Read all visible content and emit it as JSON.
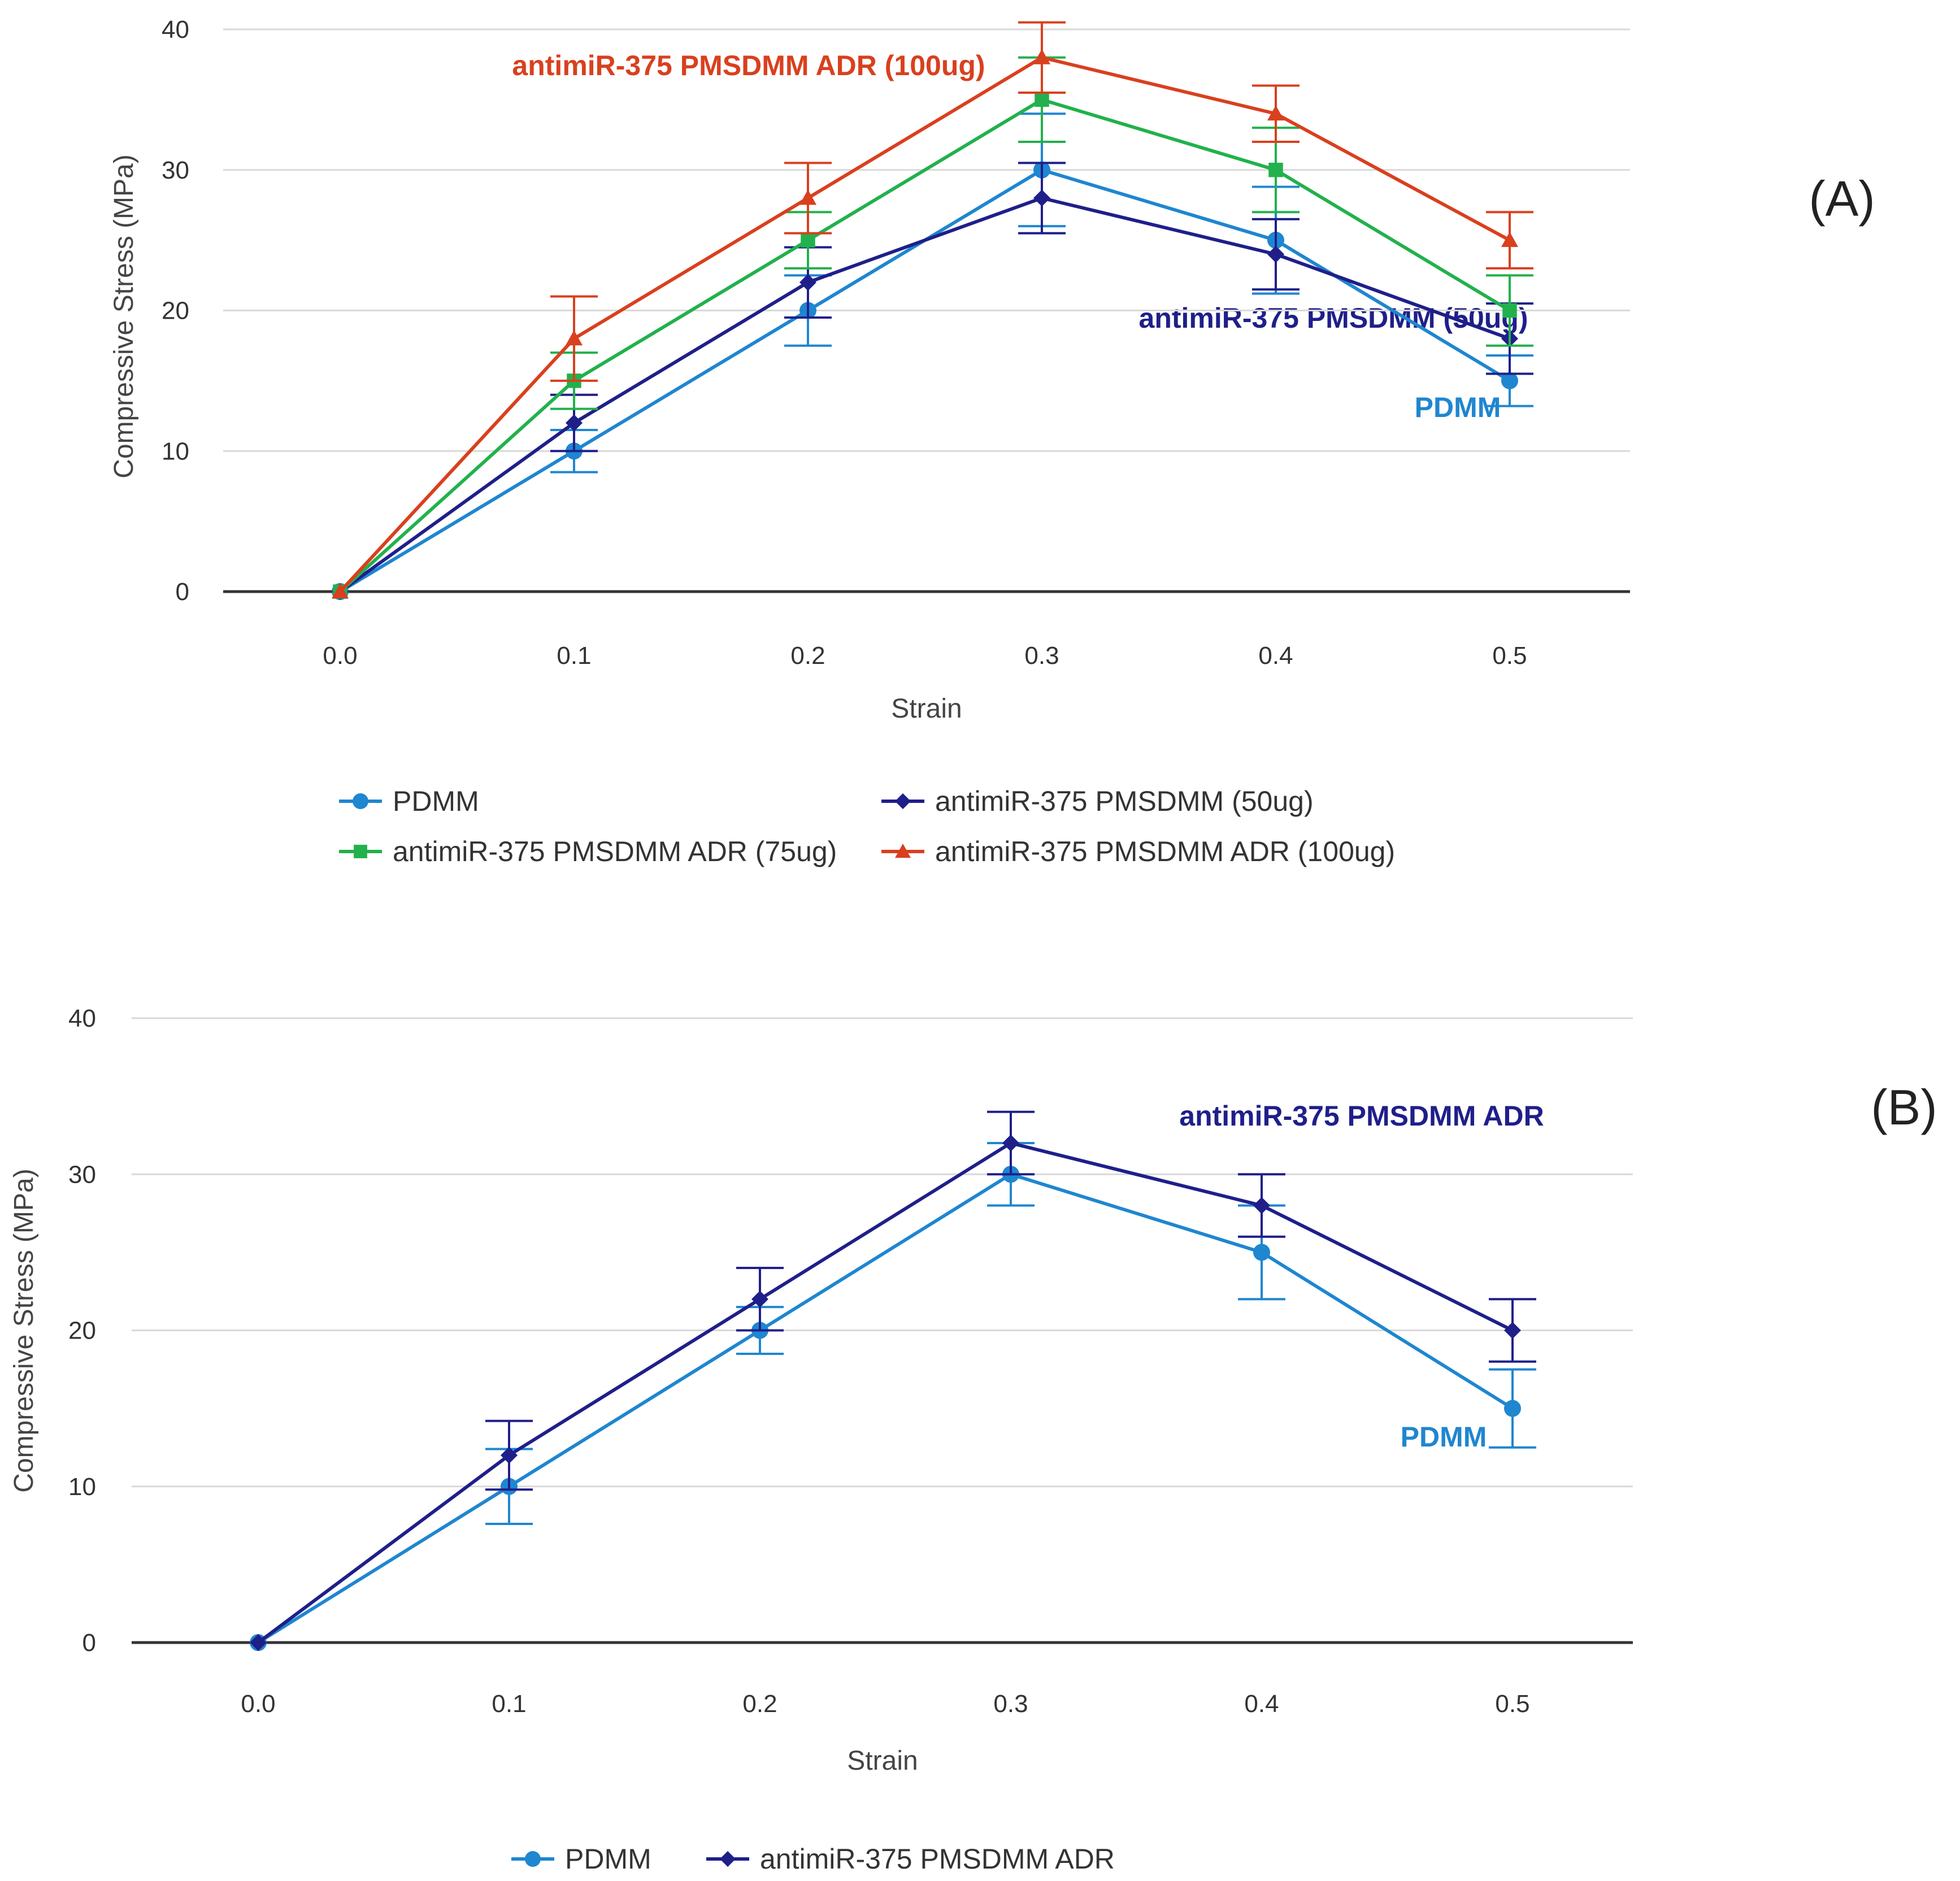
{
  "chart_data": [
    {
      "type": "line",
      "panel_label": "(A)",
      "xlabel": "Strain",
      "ylabel": "Compressive Stress (MPa)",
      "categories": [
        "0.0",
        "0.1",
        "0.2",
        "0.3",
        "0.4",
        "0.5"
      ],
      "x": [
        0.0,
        0.1,
        0.2,
        0.3,
        0.4,
        0.5
      ],
      "ylim": [
        0,
        40
      ],
      "yticks": [
        "0",
        "10",
        "20",
        "30",
        "40"
      ],
      "grid": true,
      "legend_position": "bottom",
      "series": [
        {
          "name": "PDMM",
          "color": "#1f86d0",
          "marker": "circle",
          "values": [
            0,
            10,
            20,
            30,
            25,
            15
          ],
          "errors": [
            0,
            1.5,
            2.5,
            4,
            3.8,
            1.8
          ]
        },
        {
          "name": "antimiR-375 PMSDMM (50ug)",
          "color": "#1f1f8a",
          "marker": "diamond",
          "values": [
            0,
            12,
            22,
            28,
            24,
            18
          ],
          "errors": [
            0,
            2,
            2.5,
            2.5,
            2.5,
            2.5
          ]
        },
        {
          "name": "antimiR-375 PMSDMM ADR (75ug)",
          "color": "#22b14c",
          "marker": "square",
          "values": [
            0,
            15,
            25,
            35,
            30,
            20
          ],
          "errors": [
            0,
            2,
            2,
            3,
            3,
            2.5
          ]
        },
        {
          "name": "antimiR-375 PMSDMM ADR (100ug)",
          "color": "#d9401e",
          "marker": "triangle",
          "values": [
            0,
            18,
            28,
            38,
            34,
            25
          ],
          "errors": [
            0,
            3,
            2.5,
            2.5,
            2,
            2
          ]
        }
      ],
      "annotations": [
        {
          "text": "antimiR-375 PMSDMM ADR (100ug)",
          "color": "#d9401e"
        },
        {
          "text": "antimiR-375 PMSDMM (50ug)",
          "color": "#1f1f8a"
        },
        {
          "text": "PDMM",
          "color": "#1f86d0"
        }
      ]
    },
    {
      "type": "line",
      "panel_label": "(B)",
      "xlabel": "Strain",
      "ylabel": "Compressive Stress (MPa)",
      "categories": [
        "0.0",
        "0.1",
        "0.2",
        "0.3",
        "0.4",
        "0.5"
      ],
      "x": [
        0.0,
        0.1,
        0.2,
        0.3,
        0.4,
        0.5
      ],
      "ylim": [
        0,
        40
      ],
      "yticks": [
        "0",
        "10",
        "20",
        "30",
        "40"
      ],
      "grid": true,
      "legend_position": "bottom",
      "series": [
        {
          "name": "PDMM",
          "color": "#1f86d0",
          "marker": "circle",
          "values": [
            0,
            10,
            20,
            30,
            25,
            15
          ],
          "errors": [
            0,
            2.4,
            1.5,
            2,
            3,
            2.5
          ]
        },
        {
          "name": "antimiR-375 PMSDMM ADR",
          "color": "#1f1f8a",
          "marker": "diamond",
          "values": [
            0,
            12,
            22,
            32,
            28,
            20
          ],
          "errors": [
            0,
            2.2,
            2,
            2,
            2,
            2
          ]
        }
      ],
      "annotations": [
        {
          "text": "antimiR-375 PMSDMM ADR",
          "color": "#1f1f8a"
        },
        {
          "text": "PDMM",
          "color": "#1f86d0"
        }
      ]
    }
  ]
}
